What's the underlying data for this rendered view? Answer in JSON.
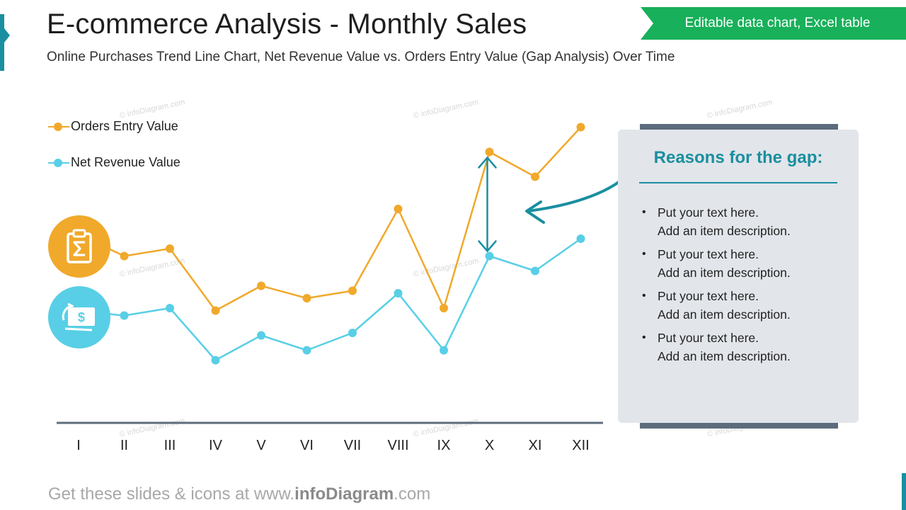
{
  "header": {
    "title": "E-commerce Analysis - Monthly Sales",
    "subtitle": "Online Purchases Trend Line Chart, Net Revenue Value vs. Orders Entry Value (Gap Analysis) Over Time",
    "ribbon": "Editable data chart, Excel table"
  },
  "watermark": "© infoDiagram.com",
  "colors": {
    "orders": "#f0a92b",
    "revenue": "#58cfe6",
    "accent": "#1a8fa0",
    "ribbon": "#18b05a",
    "axis": "#5c6c7c",
    "panel": "#e2e5ea"
  },
  "icons": {
    "orders": "clipboard-sigma-icon",
    "revenue": "money-refresh-icon"
  },
  "chart_data": {
    "type": "line",
    "categories": [
      "I",
      "II",
      "III",
      "IV",
      "V",
      "VI",
      "VII",
      "VIII",
      "IX",
      "X",
      "XI",
      "XII"
    ],
    "series": [
      {
        "name": "Orders Entry Value",
        "values": [
          67,
          61,
          64,
          39,
          49,
          44,
          47,
          80,
          40,
          103,
          93,
          113
        ]
      },
      {
        "name": "Net Revenue Value",
        "values": [
          40,
          37,
          40,
          19,
          29,
          23,
          30,
          46,
          23,
          61,
          55,
          68
        ]
      }
    ],
    "ylim": [
      0,
      120
    ],
    "grid": false,
    "legend": "top-left",
    "annotation": {
      "type": "gap-arrow",
      "category": "X"
    }
  },
  "panel": {
    "title": "Reasons for the gap:",
    "items": [
      {
        "line1": "Put your text here.",
        "line2": "Add an item description."
      },
      {
        "line1": "Put your text here.",
        "line2": "Add an item description."
      },
      {
        "line1": "Put your text here.",
        "line2": "Add an item description."
      },
      {
        "line1": "Put your text here.",
        "line2": "Add an item description."
      }
    ]
  },
  "footer": {
    "pre": "Get these slides & icons at www.",
    "brand": "infoDiagram",
    "post": ".com"
  }
}
